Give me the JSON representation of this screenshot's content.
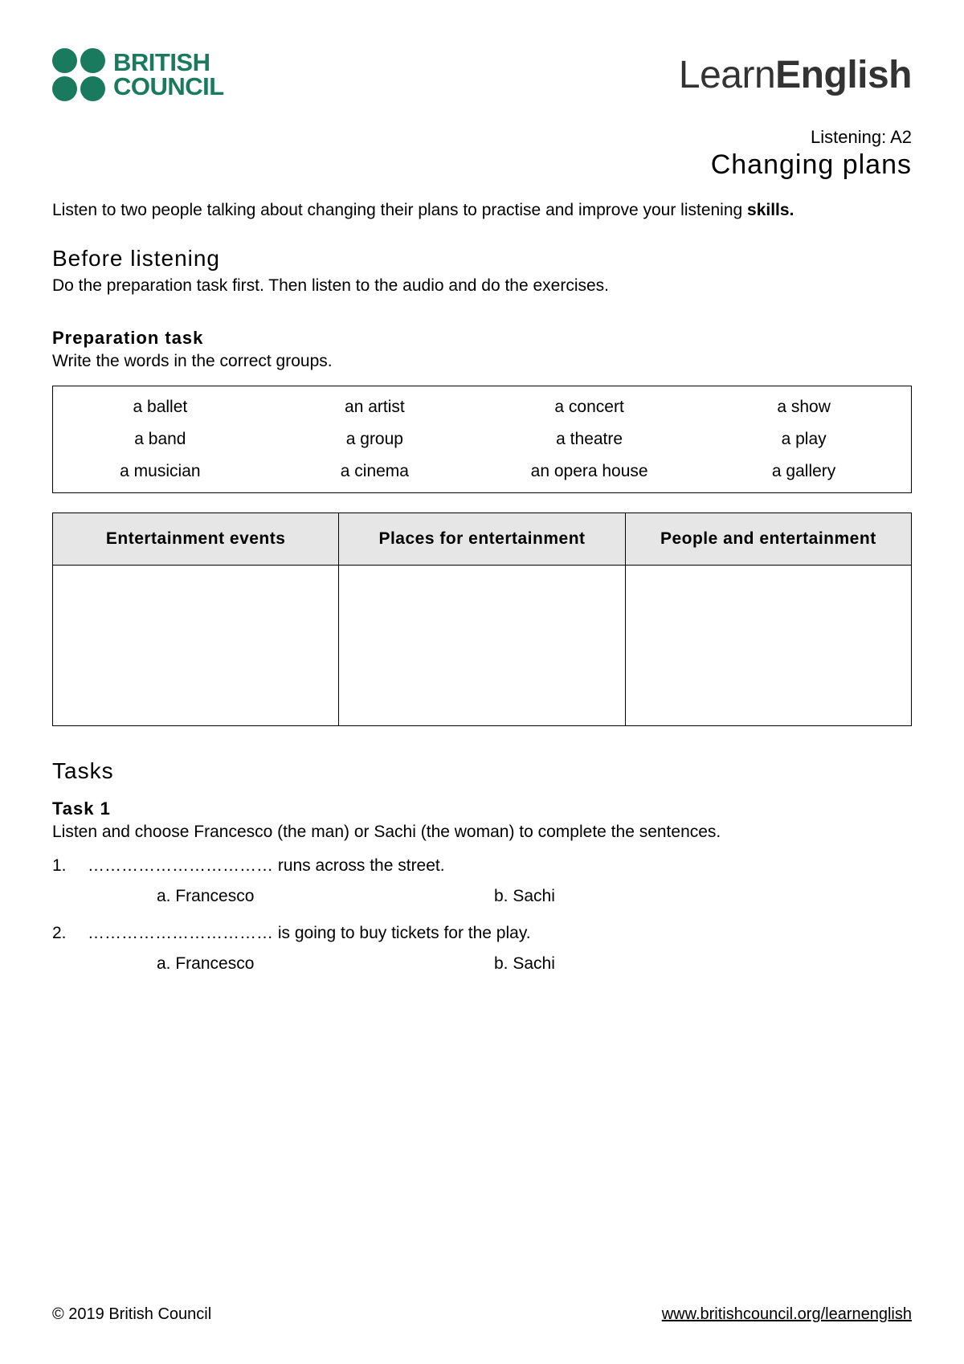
{
  "header": {
    "bc_line1": "BRITISH",
    "bc_line2": "COUNCIL",
    "le_light": "Learn",
    "le_bold": "English"
  },
  "title_block": {
    "level": "Listening: A2",
    "title": "Changing plans"
  },
  "intro": {
    "text": "Listen to two people talking about changing their plans to practise and improve your listening ",
    "skills_label": "skills."
  },
  "before": {
    "heading": "Before listening",
    "desc": "Do the preparation task first. Then listen to the audio and do the exercises."
  },
  "prep": {
    "heading": "Preparation task",
    "desc": "Write the words in the correct groups.",
    "words": [
      [
        "a ballet",
        "an artist",
        "a concert",
        "a show"
      ],
      [
        "a band",
        "a group",
        "a theatre",
        "a play"
      ],
      [
        "a musician",
        "a cinema",
        "an opera house",
        "a gallery"
      ]
    ],
    "group_headers": [
      "Entertainment events",
      "Places for entertainment",
      "People and entertainment"
    ]
  },
  "tasks": {
    "heading": "Tasks",
    "task1": {
      "heading": "Task 1",
      "desc": "Listen and choose Francesco (the man) or Sachi (the woman) to complete the sentences.",
      "items": [
        {
          "num": "1.",
          "blank": "……………………………",
          "rest": " runs across the street.",
          "a": "a. Francesco",
          "b": "b. Sachi"
        },
        {
          "num": "2.",
          "blank": "……………………………",
          "rest": " is going to buy tickets for the play.",
          "a": "a. Francesco",
          "b": "b. Sachi"
        }
      ]
    }
  },
  "footer": {
    "copyright": "© 2019 British Council",
    "url": "www.britishcouncil.org/learnenglish"
  },
  "colors": {
    "brand_green": "#1a7a5e",
    "header_grey": "#e6e6e6",
    "text": "#000000",
    "background": "#ffffff"
  }
}
